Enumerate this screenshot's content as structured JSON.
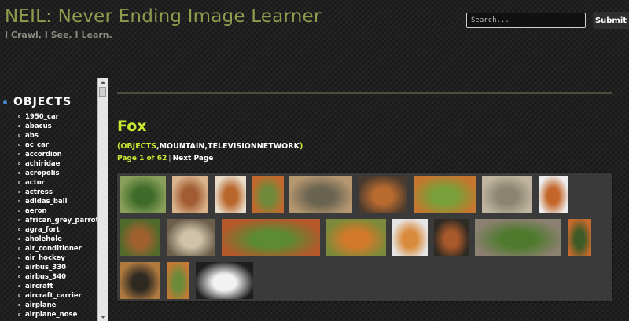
{
  "header": {
    "title": "NEIL: Never Ending Image Learner",
    "tagline": "I Crawl, I See, I Learn.",
    "search_placeholder": "Search...",
    "submit_label": "Submit"
  },
  "sidebar": {
    "section_title": "OBJECTS",
    "items": [
      "1950_car",
      "abacus",
      "abs",
      "ac_car",
      "accordion",
      "achiridae",
      "acropolis",
      "actor",
      "actress",
      "adidas_ball",
      "aeron",
      "african_grey_parrot",
      "agra_fort",
      "aholehole",
      "air_conditioner",
      "air_hockey",
      "airbus_330",
      "airbus_340",
      "aircraft",
      "aircraft_carrier",
      "airplane",
      "airplane_nose"
    ]
  },
  "main": {
    "title": "Fox",
    "categories": [
      "OBJECTS",
      "MOUNTAIN",
      "TELEVISIONNETWORK"
    ],
    "page_indicator": "Page 1 of 62",
    "separator": "|",
    "next_label": "Next Page",
    "thumbnails": [
      {
        "icon": "fox-in-grass-photo",
        "colors": [
          "#3f6b2a",
          "#8aa05a"
        ]
      },
      {
        "icon": "fox-sleeping-photo",
        "colors": [
          "#a25c33",
          "#d9b38c"
        ]
      },
      {
        "icon": "fox-face-photo",
        "colors": [
          "#b8662c",
          "#e8dcc8"
        ]
      },
      {
        "icon": "fox-head-grass-photo",
        "colors": [
          "#6f8a3a",
          "#c46a2e"
        ]
      },
      {
        "icon": "grey-fox-photo",
        "colors": [
          "#6a6350",
          "#b59770"
        ]
      },
      {
        "icon": "red-fox-standing-photo",
        "colors": [
          "#b86a2f",
          "#4b3b2e"
        ]
      },
      {
        "icon": "fox-running-photo",
        "colors": [
          "#78a03a",
          "#c4772e"
        ]
      },
      {
        "icon": "grey-fox-walking-photo",
        "colors": [
          "#8c8470",
          "#c0b6a0"
        ]
      },
      {
        "icon": "fox-closeup-photo",
        "colors": [
          "#c4662a",
          "#eeeeee"
        ]
      },
      {
        "icon": "fox-lying-photo",
        "colors": [
          "#a0602e",
          "#4f6a2c"
        ]
      },
      {
        "icon": "pale-fox-photo",
        "colors": [
          "#cfc2a8",
          "#6b5e4a"
        ]
      },
      {
        "icon": "fox-stretching-photo",
        "colors": [
          "#5d8a34",
          "#b5582a"
        ]
      },
      {
        "icon": "fox-pouncing-photo",
        "colors": [
          "#d27a2a",
          "#7a8a3a"
        ]
      },
      {
        "icon": "fox-snow-photo",
        "colors": [
          "#d98a3a",
          "#e6e6e6"
        ]
      },
      {
        "icon": "fox-looking-photo",
        "colors": [
          "#a8582a",
          "#2e2a24"
        ]
      },
      {
        "icon": "grey-fox-grass-photo",
        "colors": [
          "#4f7a2e",
          "#8c8070"
        ]
      },
      {
        "icon": "fox-sitting-photo",
        "colors": [
          "#3e5a26",
          "#c46a2e"
        ]
      },
      {
        "icon": "fox-dark-photo",
        "colors": [
          "#2e2a22",
          "#b07a3e"
        ]
      },
      {
        "icon": "fox-meadow-photo",
        "colors": [
          "#6d8a3a",
          "#c47a34"
        ]
      },
      {
        "icon": "arctic-fox-curled-photo",
        "colors": [
          "#f2f2f2",
          "#1e1e1e"
        ]
      }
    ]
  }
}
